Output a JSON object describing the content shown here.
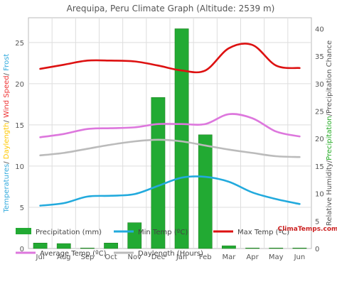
{
  "chart_data": {
    "type": "bar+line",
    "title": "Arequipa, Peru Climate Graph (Altitude: 2539 m)",
    "categories": [
      "Jul",
      "Aug",
      "Sep",
      "Oct",
      "Nov",
      "Dec",
      "Jan",
      "Feb",
      "Mar",
      "Apr",
      "May",
      "Jun"
    ],
    "left_axis": {
      "ylim": [
        0,
        28
      ],
      "ticks": [
        0,
        5,
        10,
        15,
        20,
        25
      ],
      "label_parts": [
        {
          "text": "Temperatures",
          "color": "#33aadd"
        },
        {
          "text": "/ ",
          "color": "#555555"
        },
        {
          "text": "Daylength",
          "color": "#ffc800"
        },
        {
          "text": "/ ",
          "color": "#555555"
        },
        {
          "text": "Wind Speed",
          "color": "#ee3333"
        },
        {
          "text": "/ ",
          "color": "#555555"
        },
        {
          "text": "Frost",
          "color": "#33aadd"
        }
      ]
    },
    "right_axis": {
      "ylim": [
        0,
        42
      ],
      "ticks": [
        0,
        5,
        10,
        15,
        20,
        25,
        30,
        35,
        40
      ],
      "label_parts": [
        {
          "text": "Relative Humidity",
          "color": "#555555"
        },
        {
          "text": "/",
          "color": "#555555"
        },
        {
          "text": "Precipitation",
          "color": "#22aa22"
        },
        {
          "text": "/",
          "color": "#555555"
        },
        {
          "text": "Precipitation Chance",
          "color": "#555555"
        }
      ]
    },
    "series": [
      {
        "name": "Precipitation (mm)",
        "type": "bar",
        "axis": "right",
        "color": "#22aa33",
        "values": [
          1.0,
          0.9,
          0.1,
          1.0,
          4.7,
          27.5,
          40.0,
          20.7,
          0.5,
          0.1,
          0.1,
          0.1
        ]
      },
      {
        "name": "Min Temp (ºC)",
        "type": "line",
        "axis": "left",
        "color": "#22aadd",
        "values": [
          5.2,
          5.5,
          6.3,
          6.4,
          6.6,
          7.6,
          8.6,
          8.7,
          8.1,
          6.8,
          6.0,
          5.4
        ]
      },
      {
        "name": "Max Temp (ºC)",
        "type": "line",
        "axis": "left",
        "color": "#dd1111",
        "values": [
          21.8,
          22.3,
          22.8,
          22.8,
          22.7,
          22.2,
          21.6,
          21.6,
          24.3,
          24.7,
          22.2,
          21.9
        ]
      },
      {
        "name": "Average Temp (ºC)",
        "type": "line",
        "axis": "left",
        "color": "#dd77dd",
        "values": [
          13.5,
          13.9,
          14.5,
          14.6,
          14.7,
          15.1,
          15.1,
          15.1,
          16.3,
          15.8,
          14.2,
          13.6
        ]
      },
      {
        "name": "Daylength (Hours)",
        "type": "line",
        "axis": "left",
        "color": "#bbbbbb",
        "values": [
          11.3,
          11.6,
          12.1,
          12.6,
          13.0,
          13.2,
          13.0,
          12.5,
          12.0,
          11.6,
          11.2,
          11.1
        ]
      }
    ],
    "grid": true,
    "legend_position": "bottom"
  },
  "watermark": "ClimaTemps.com"
}
